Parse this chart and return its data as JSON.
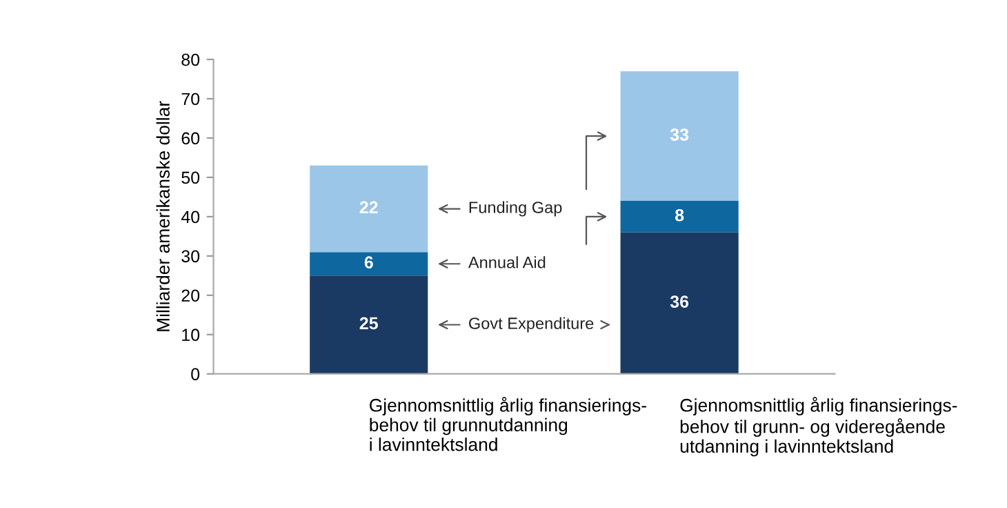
{
  "chart_data": {
    "type": "bar",
    "stacked": true,
    "ylabel": "Milliarder amerikanske dollar",
    "categories": [
      "Gjennomsnittlig årlig finansierings-\nbehov til grunnutdanning\ni lavinntektsland",
      "Gjennomsnittlig årlig finansierings-\nbehov til grunn- og videregående\nutdanning i lavinntektsland"
    ],
    "series": [
      {
        "name": "Govt Expenditure",
        "color": "#1b3a63",
        "values": [
          25,
          36
        ]
      },
      {
        "name": "Annual Aid",
        "color": "#0f67a0",
        "values": [
          6,
          8
        ]
      },
      {
        "name": "Funding Gap",
        "color": "#9cc6e8",
        "values": [
          22,
          33
        ]
      }
    ],
    "ylim": [
      0,
      80
    ],
    "yticks": [
      0,
      10,
      20,
      30,
      40,
      50,
      60,
      70,
      80
    ],
    "data_labels": true,
    "grid": false,
    "legend": false
  }
}
